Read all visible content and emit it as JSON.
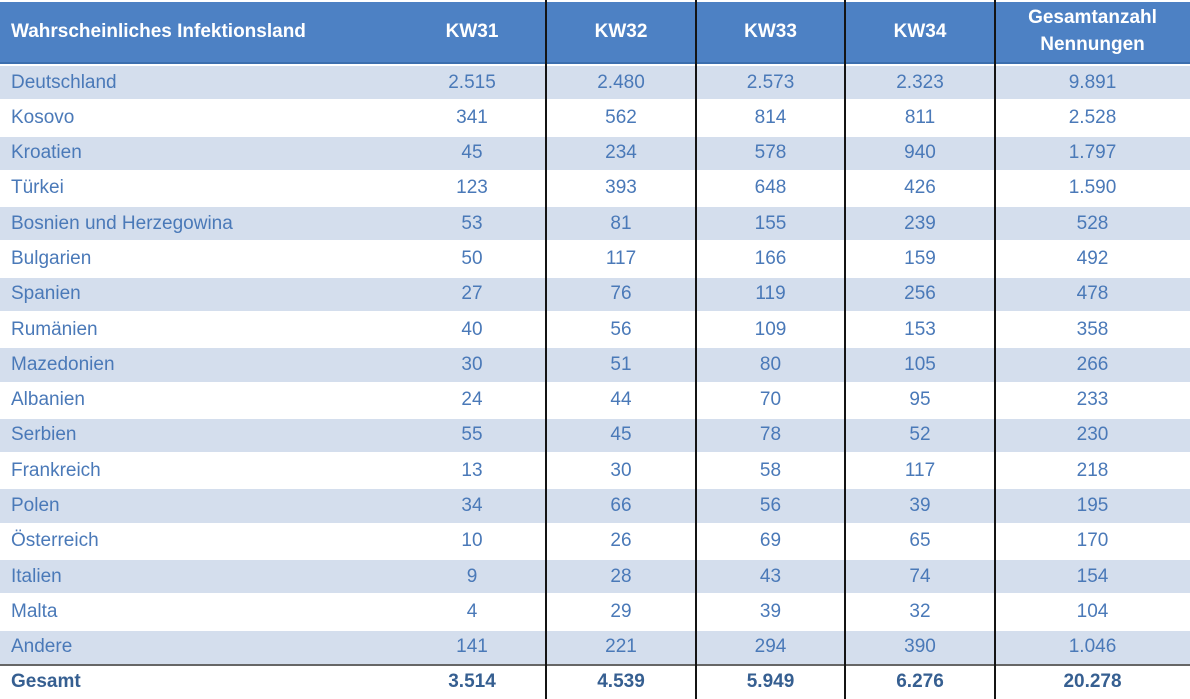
{
  "table": {
    "header": {
      "country_label": "Wahrscheinliches Infektionsland",
      "week_labels": [
        "KW31",
        "KW32",
        "KW33",
        "KW34"
      ],
      "total_label": "Gesamtanzahl Nennungen"
    },
    "rows": [
      {
        "country": "Deutschland",
        "values": [
          "2.515",
          "2.480",
          "2.573",
          "2.323",
          "9.891"
        ]
      },
      {
        "country": "Kosovo",
        "values": [
          "341",
          "562",
          "814",
          "811",
          "2.528"
        ]
      },
      {
        "country": "Kroatien",
        "values": [
          "45",
          "234",
          "578",
          "940",
          "1.797"
        ]
      },
      {
        "country": "Türkei",
        "values": [
          "123",
          "393",
          "648",
          "426",
          "1.590"
        ]
      },
      {
        "country": "Bosnien und Herzegowina",
        "values": [
          "53",
          "81",
          "155",
          "239",
          "528"
        ]
      },
      {
        "country": "Bulgarien",
        "values": [
          "50",
          "117",
          "166",
          "159",
          "492"
        ]
      },
      {
        "country": "Spanien",
        "values": [
          "27",
          "76",
          "119",
          "256",
          "478"
        ]
      },
      {
        "country": "Rumänien",
        "values": [
          "40",
          "56",
          "109",
          "153",
          "358"
        ]
      },
      {
        "country": "Mazedonien",
        "values": [
          "30",
          "51",
          "80",
          "105",
          "266"
        ]
      },
      {
        "country": "Albanien",
        "values": [
          "24",
          "44",
          "70",
          "95",
          "233"
        ]
      },
      {
        "country": "Serbien",
        "values": [
          "55",
          "45",
          "78",
          "52",
          "230"
        ]
      },
      {
        "country": "Frankreich",
        "values": [
          "13",
          "30",
          "58",
          "117",
          "218"
        ]
      },
      {
        "country": "Polen",
        "values": [
          "34",
          "66",
          "56",
          "39",
          "195"
        ]
      },
      {
        "country": "Österreich",
        "values": [
          "10",
          "26",
          "69",
          "65",
          "170"
        ]
      },
      {
        "country": "Italien",
        "values": [
          "9",
          "28",
          "43",
          "74",
          "154"
        ]
      },
      {
        "country": "Malta",
        "values": [
          "4",
          "29",
          "39",
          "32",
          "104"
        ]
      },
      {
        "country": "Andere",
        "values": [
          "141",
          "221",
          "294",
          "390",
          "1.046"
        ]
      }
    ],
    "total_row": {
      "country": "Gesamt",
      "values": [
        "3.514",
        "4.539",
        "5.949",
        "6.276",
        "20.278"
      ]
    }
  },
  "colors": {
    "header_bg": "#4d81c4",
    "header_edge": "#3c6fae",
    "header_text": "#ffffff",
    "row_alt_bg": "#d4deed",
    "row_bg": "#ffffff",
    "cell_text": "#4a79b8",
    "total_text": "#365f91",
    "divider": "#141414",
    "total_rule": "#666666"
  }
}
